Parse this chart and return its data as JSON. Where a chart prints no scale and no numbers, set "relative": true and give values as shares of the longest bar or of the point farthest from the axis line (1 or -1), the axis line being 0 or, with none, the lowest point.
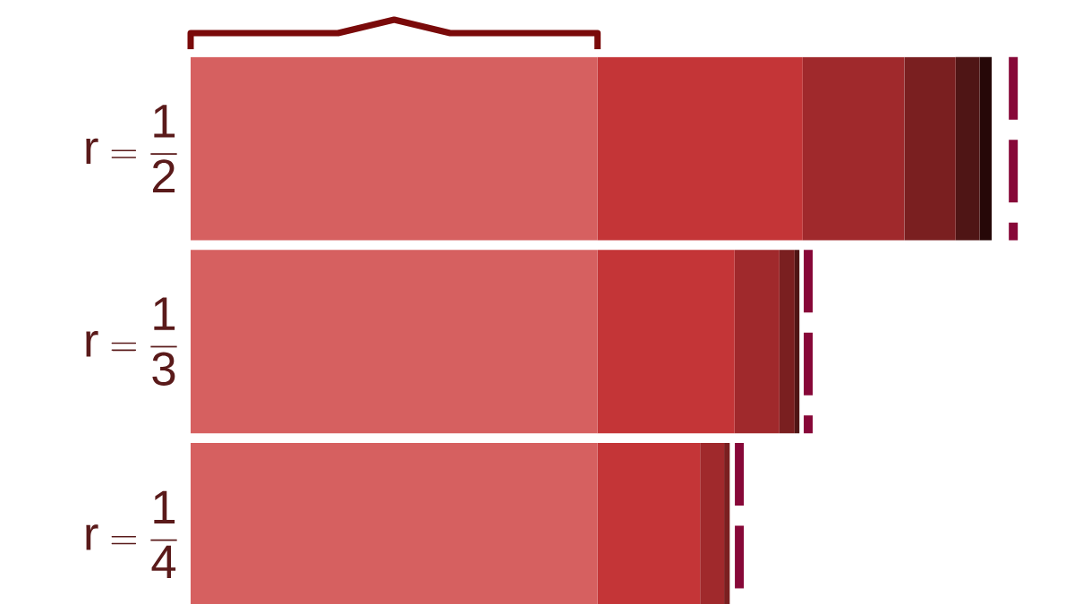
{
  "chart_data": {
    "type": "bar",
    "orientation": "horizontal",
    "stacked": true,
    "relative": true,
    "categories": [
      "\\mathrm{r = \\dfrac{1}{2}}",
      "\\mathrm{r = \\dfrac{1}{3}}",
      "\\mathrm{r = \\dfrac{1}{4}}"
    ],
    "series": [
      {
        "color": "#d66060",
        "values": [
          0.508,
          0.508,
          0.508
        ]
      },
      {
        "color": "#c43537",
        "values": [
          0.256,
          0.171,
          0.128
        ]
      },
      {
        "color": "#a0292c",
        "values": [
          0.127,
          0.056,
          0.03
        ]
      },
      {
        "color": "#7a1f20",
        "values": [
          0.064,
          0.019,
          0.007
        ]
      },
      {
        "color": "#4f1515",
        "values": [
          0.03,
          0.006,
          null
        ]
      },
      {
        "color": "#260808",
        "values": [
          0.015,
          null,
          null
        ]
      }
    ],
    "ref_lines": [
      {
        "axis": "x",
        "value": 1.027,
        "color": "#870838",
        "line_style": "dashed"
      },
      {
        "axis": "x",
        "value": 0.771,
        "color": "#870838",
        "line_style": "dashed"
      },
      {
        "axis": "x",
        "value": 0.685,
        "color": "#870838",
        "line_style": "dashed"
      }
    ]
  }
}
